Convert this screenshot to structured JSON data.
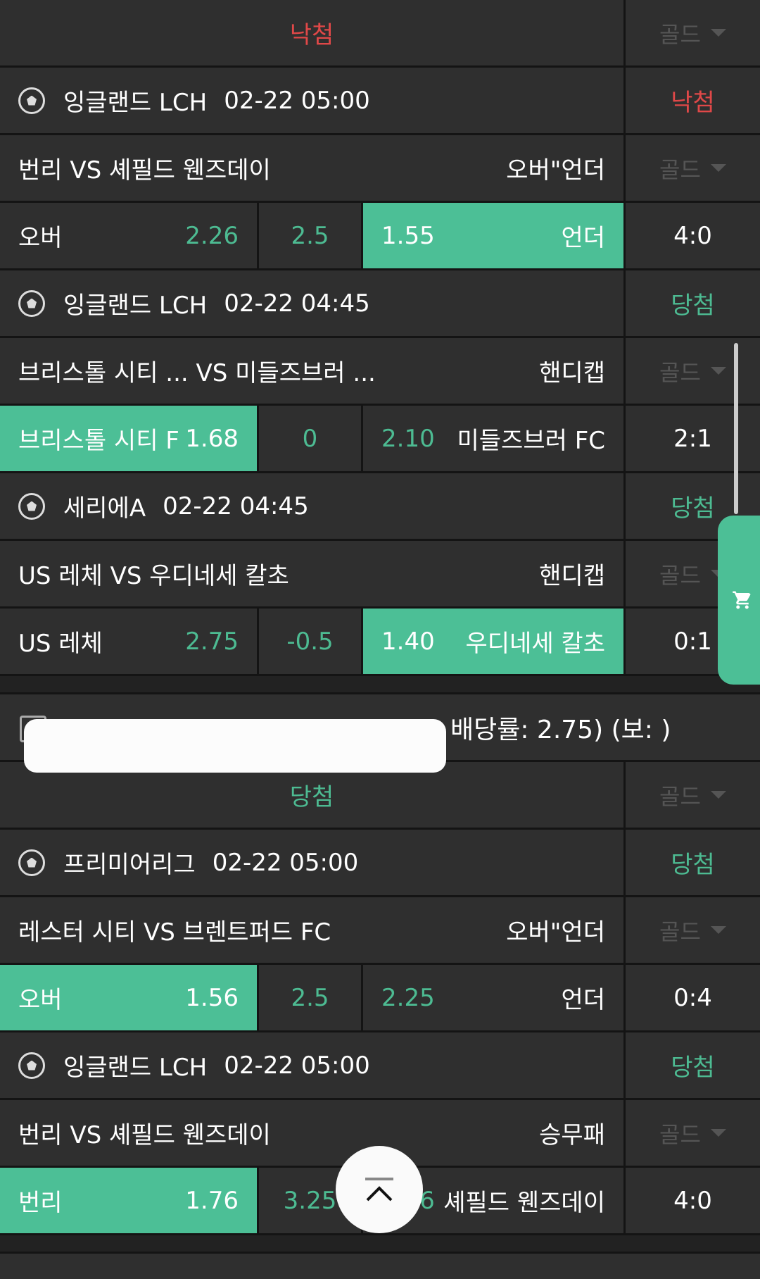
{
  "gold_label": "골드",
  "sections": [
    {
      "status": "낙첨",
      "status_color": "red",
      "bets": [
        {
          "league": "잉글랜드 LCH",
          "time": "02-22 05:00",
          "result": "낙첨",
          "result_color": "red",
          "match": "번리 VS 셰필드 웬즈데이",
          "market": "오버\"언더",
          "left_name": "오버",
          "left_odds": "2.26",
          "mid": "2.5",
          "right_odds": "1.55",
          "right_name": "언더",
          "selected": "right",
          "score": "4:0"
        },
        {
          "league": "잉글랜드 LCH",
          "time": "02-22 04:45",
          "result": "당첨",
          "result_color": "green",
          "match": "브리스톨 시티 ...   VS 미들즈브러 ...",
          "market": "핸디캡",
          "left_name": "브리스톨 시티 F",
          "left_odds": "1.68",
          "mid": "0",
          "right_odds": "2.10",
          "right_name": "미들즈브러 FC",
          "selected": "left",
          "score": "2:1"
        },
        {
          "league": "세리에A",
          "time": "02-22 04:45",
          "result": "당첨",
          "result_color": "green",
          "match": "US 레체 VS 우디네세 칼초",
          "market": "핸디캡",
          "left_name": "US 레체",
          "left_odds": "2.75",
          "mid": "-0.5",
          "right_odds": "1.40",
          "right_name": "우디네세 칼초",
          "selected": "right",
          "score": "0:1"
        }
      ],
      "comment": "배당률: 2.75) (보: )"
    },
    {
      "status": "당첨",
      "status_color": "green",
      "bets": [
        {
          "league": "프리미어리그",
          "time": "02-22 05:00",
          "result": "당첨",
          "result_color": "green",
          "match": "레스터 시티 VS 브렌트퍼드 FC",
          "market": "오버\"언더",
          "left_name": "오버",
          "left_odds": "1.56",
          "mid": "2.5",
          "right_odds": "2.25",
          "right_name": "언더",
          "selected": "left",
          "score": "0:4"
        },
        {
          "league": "잉글랜드 LCH",
          "time": "02-22 05:00",
          "result": "당첨",
          "result_color": "green",
          "match": "번리 VS 셰필드 웬즈데이",
          "market": "승무패",
          "left_name": "번리",
          "left_odds": "1.76",
          "mid": "3.25",
          "right_odds": "4.36",
          "right_name": "셰필드 웬즈데이",
          "selected": "left",
          "score": "4:0"
        }
      ]
    }
  ],
  "icons": {
    "cart": "cart-icon",
    "top": "scroll-to-top-icon",
    "ball": "soccer-ball-icon"
  }
}
